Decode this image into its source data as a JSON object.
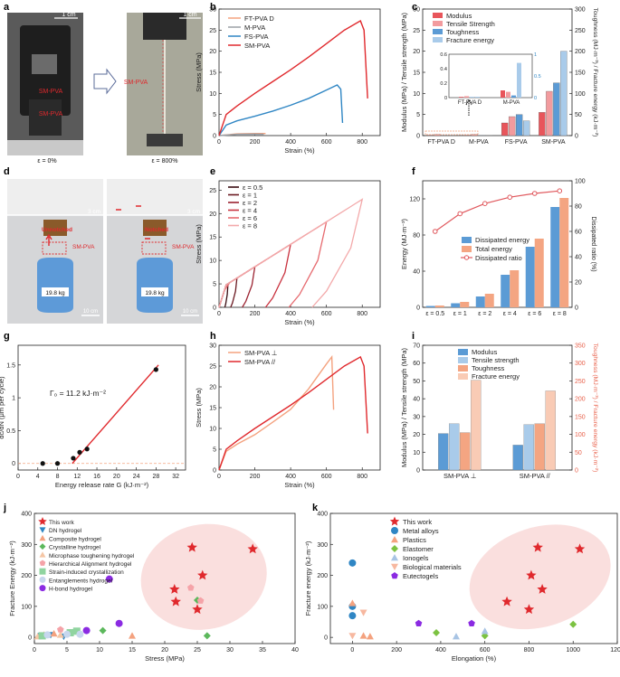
{
  "panel_labels": [
    "a",
    "b",
    "c",
    "d",
    "e",
    "f",
    "g",
    "h",
    "i",
    "j",
    "k"
  ],
  "photos": {
    "a": {
      "scale1": "1 cm",
      "scale2": "1 cm",
      "label_top": "SM-PVA",
      "label_bottom": "SM-PVA",
      "label_right": "SM-PVA",
      "strain1": "ε = 0%",
      "strain2": "ε = 800%"
    },
    "d": {
      "scale1": "3 cm",
      "scale2": "3 cm",
      "unnotched": "Unnotched",
      "notched": "Notched",
      "sample1": "SM-PVA",
      "sample2": "SM-PVA",
      "weight1": "19.8 kg",
      "weight2": "19.8 kg",
      "bottom1": "10 cm",
      "bottom2": "10 cm"
    }
  },
  "chart_data": [
    {
      "id": "b",
      "type": "line",
      "xlabel": "Strain (%)",
      "ylabel": "Stress (MPa)",
      "xlim": [
        0,
        900
      ],
      "ylim": [
        0,
        30
      ],
      "xticks": [
        0,
        200,
        400,
        600,
        800
      ],
      "yticks": [
        0,
        5,
        10,
        15,
        20,
        25,
        30
      ],
      "series": [
        {
          "name": "FT-PVA D",
          "color": "#f4a27f",
          "points": [
            [
              0,
              0
            ],
            [
              100,
              0.4
            ],
            [
              200,
              0.5
            ],
            [
              260,
              0.5
            ]
          ]
        },
        {
          "name": "M-PVA",
          "color": "#9aa0a6",
          "points": [
            [
              0,
              0
            ],
            [
              100,
              0.3
            ],
            [
              200,
              0.35
            ],
            [
              250,
              0.3
            ]
          ]
        },
        {
          "name": "FS-PVA",
          "color": "#2f86c4",
          "points": [
            [
              0,
              0
            ],
            [
              40,
              2.5
            ],
            [
              100,
              3.5
            ],
            [
              200,
              4.6
            ],
            [
              300,
              5.8
            ],
            [
              400,
              7.2
            ],
            [
              500,
              8.8
            ],
            [
              600,
              10.8
            ],
            [
              660,
              12.0
            ],
            [
              680,
              11.0
            ],
            [
              690,
              3.0
            ]
          ]
        },
        {
          "name": "SM-PVA",
          "color": "#e0292d",
          "points": [
            [
              0,
              0
            ],
            [
              40,
              5
            ],
            [
              100,
              7
            ],
            [
              200,
              10
            ],
            [
              300,
              12.8
            ],
            [
              400,
              15.6
            ],
            [
              500,
              18.6
            ],
            [
              600,
              21.8
            ],
            [
              700,
              25.0
            ],
            [
              790,
              27.2
            ],
            [
              810,
              25.0
            ],
            [
              830,
              8.8
            ]
          ]
        }
      ]
    },
    {
      "id": "c",
      "type": "bar",
      "ylabel_left": "Modulus (MPa) / Tensile strength (MPa)",
      "ylabel_right": "Toughness (MJ·m⁻³) / Fracture energy (kJ·m⁻²)",
      "ylim_left": [
        0,
        30
      ],
      "ylim_right": [
        0,
        300
      ],
      "yticks_left": [
        0,
        5,
        10,
        15,
        20,
        25,
        30
      ],
      "yticks_right": [
        0,
        50,
        100,
        150,
        200,
        250,
        300
      ],
      "categories": [
        "FT-PVA D",
        "M-PVA",
        "FS-PVA",
        "SM-PVA"
      ],
      "series": [
        {
          "name": "Modulus",
          "axis": "left",
          "color": "#e8555b",
          "values": [
            0.1,
            0.1,
            3.0,
            5.5
          ]
        },
        {
          "name": "Tensile Strength",
          "axis": "left",
          "color": "#f29b9e",
          "values": [
            0.3,
            0.3,
            4.5,
            10.5
          ]
        },
        {
          "name": "Toughness",
          "axis": "right",
          "color": "#5b9bd5",
          "values": [
            0.2,
            0.3,
            50,
            125
          ]
        },
        {
          "name": "Fracture energy",
          "axis": "right",
          "color": "#a9cbea",
          "values": [
            0.8,
            0.5,
            35,
            200
          ]
        }
      ],
      "inset": {
        "ylim_left": [
          0,
          0.6
        ],
        "ylim_right": [
          0,
          1.0
        ],
        "yticks_left": [
          0,
          0.2,
          0.4,
          0.6
        ],
        "yticks_right": [
          0,
          0.5,
          1.0
        ],
        "categories": [
          "FT-PVA D",
          "M-PVA"
        ],
        "values": {
          "Modulus": [
            0.01,
            0.1
          ],
          "Tensile Strength": [
            0.02,
            0.08
          ],
          "Toughness": [
            0.01,
            0.05
          ],
          "Fracture energy": [
            0.02,
            0.8
          ]
        }
      }
    },
    {
      "id": "e",
      "type": "line",
      "xlabel": "Strain (%)",
      "ylabel": "Stress (MPa)",
      "xlim": [
        0,
        900
      ],
      "ylim": [
        0,
        27
      ],
      "xticks": [
        0,
        200,
        400,
        600,
        800
      ],
      "yticks": [
        0,
        5,
        10,
        15,
        20,
        25
      ],
      "series": [
        {
          "name": "ε = 0.5",
          "color": "#3a0d12",
          "max": 50
        },
        {
          "name": "ε = 1",
          "color": "#6b1a22",
          "max": 100
        },
        {
          "name": "ε = 2",
          "color": "#9b2230",
          "max": 200
        },
        {
          "name": "ε = 4",
          "color": "#c9323f",
          "max": 400
        },
        {
          "name": "ε = 6",
          "color": "#e66a6f",
          "max": 600
        },
        {
          "name": "ε = 8",
          "color": "#f3a9aa",
          "max": 800
        }
      ]
    },
    {
      "id": "f",
      "type": "bar",
      "ylabel_left": "Energy (MJ·m⁻³)",
      "ylabel_right": "Dissipated ratio (%)",
      "ylim_left": [
        0,
        140
      ],
      "ylim_right": [
        0,
        100
      ],
      "yticks_left": [
        0,
        40,
        80,
        120
      ],
      "yticks_right": [
        0,
        20,
        40,
        60,
        80,
        100
      ],
      "categories": [
        "ε = 0.5",
        "ε = 1",
        "ε = 2",
        "ε = 4",
        "ε = 6",
        "ε = 8"
      ],
      "series": [
        {
          "name": "Dissipated energy",
          "color": "#5b9bd5",
          "values": [
            1.5,
            4.5,
            12,
            36,
            67,
            111
          ]
        },
        {
          "name": "Total energy",
          "color": "#f4a582",
          "values": [
            2,
            6,
            15,
            41,
            76,
            121
          ]
        },
        {
          "name": "Dissipated ratio",
          "color": "#e0585d",
          "values": [
            60,
            74,
            82,
            87,
            90,
            92
          ]
        }
      ]
    },
    {
      "id": "g",
      "type": "scatter",
      "xlabel": "Energy release rate G (kJ·m⁻²)",
      "ylabel": "dc/dN (μm per cycle)",
      "xlim": [
        0,
        34
      ],
      "ylim": [
        -0.1,
        1.8
      ],
      "xticks": [
        0,
        4,
        8,
        12,
        16,
        20,
        24,
        28,
        32
      ],
      "yticks": [
        0.0,
        0.5,
        1.0,
        1.5
      ],
      "annotation": "Γ₀ = 11.2 kJ·m⁻²",
      "points": [
        [
          5,
          0
        ],
        [
          8,
          0
        ],
        [
          11.2,
          0.08
        ],
        [
          12.5,
          0.17
        ],
        [
          14,
          0.22
        ],
        [
          28,
          1.43
        ]
      ],
      "fit": [
        [
          11,
          0
        ],
        [
          28.5,
          1.5
        ]
      ]
    },
    {
      "id": "h",
      "type": "line",
      "xlabel": "Strain (%)",
      "ylabel": "Stress (MPa)",
      "xlim": [
        0,
        900
      ],
      "ylim": [
        0,
        30
      ],
      "xticks": [
        0,
        200,
        400,
        600,
        800
      ],
      "yticks": [
        0,
        5,
        10,
        15,
        20,
        25,
        30
      ],
      "series": [
        {
          "name": "SM-PVA ⊥",
          "color": "#f4a27f",
          "points": [
            [
              0,
              0
            ],
            [
              40,
              4.5
            ],
            [
              100,
              6.2
            ],
            [
              200,
              8.5
            ],
            [
              300,
              11.5
            ],
            [
              400,
              14.6
            ],
            [
              500,
              19.5
            ],
            [
              600,
              25.5
            ],
            [
              630,
              27.2
            ],
            [
              640,
              14.5
            ]
          ]
        },
        {
          "name": "SM-PVA //",
          "color": "#e0292d",
          "points": [
            [
              0,
              0
            ],
            [
              40,
              5
            ],
            [
              100,
              7
            ],
            [
              200,
              10
            ],
            [
              300,
              12.8
            ],
            [
              400,
              15.6
            ],
            [
              500,
              18.6
            ],
            [
              600,
              21.8
            ],
            [
              700,
              25.0
            ],
            [
              790,
              27.2
            ],
            [
              810,
              25.0
            ],
            [
              830,
              8.8
            ]
          ]
        }
      ]
    },
    {
      "id": "i",
      "type": "bar",
      "ylabel_left": "Modulus (MPa) / Tensile strength (MPa)",
      "ylabel_right": "Toughness (MJ·m⁻³) / Fracture energy (kJ·m⁻²)",
      "ylim_left": [
        0,
        70
      ],
      "ylim_right": [
        0,
        350
      ],
      "yticks_left": [
        0,
        10,
        20,
        30,
        40,
        50,
        60,
        70
      ],
      "yticks_right": [
        0,
        50,
        100,
        150,
        200,
        250,
        300,
        350
      ],
      "categories": [
        "SM-PVA ⊥",
        "SM-PVA //"
      ],
      "series": [
        {
          "name": "Modulus",
          "axis": "left",
          "color": "#5b9bd5",
          "values": [
            20.5,
            14
          ]
        },
        {
          "name": "Tensile strength",
          "axis": "left",
          "color": "#a9cbea",
          "values": [
            26,
            25.5
          ]
        },
        {
          "name": "Toughness",
          "axis": "right",
          "color": "#f4a582",
          "values": [
            105,
            130
          ]
        },
        {
          "name": "Fracture energy",
          "axis": "right",
          "color": "#f9cbb5",
          "values": [
            252,
            222
          ]
        }
      ]
    },
    {
      "id": "j",
      "type": "scatter",
      "xlabel": "Stress (MPa)",
      "ylabel": "Fracture Energy (kJ·m⁻²)",
      "xlim": [
        0,
        40
      ],
      "ylim": [
        -20,
        400
      ],
      "xticks": [
        0,
        5,
        10,
        15,
        20,
        25,
        30,
        35,
        40
      ],
      "yticks": [
        0,
        100,
        200,
        300,
        400
      ],
      "series": [
        {
          "name": "This work",
          "color": "#e0292d",
          "marker": "star",
          "points": [
            [
              21.5,
              155
            ],
            [
              21.7,
              115
            ],
            [
              24.2,
              290
            ],
            [
              25,
              90
            ],
            [
              25.8,
              200
            ],
            [
              33.5,
              285
            ]
          ]
        },
        {
          "name": "DN hydrogel",
          "color": "#2f86c4",
          "marker": "triangle-down",
          "points": [
            [
              1,
              5
            ],
            [
              2.5,
              8
            ],
            [
              4.5,
              3
            ]
          ]
        },
        {
          "name": "Composite hydrogel",
          "color": "#f4a27f",
          "marker": "triangle",
          "points": [
            [
              1.5,
              8
            ],
            [
              3,
              12
            ],
            [
              15,
              5
            ]
          ]
        },
        {
          "name": "Crystalline hydrogel",
          "color": "#5cb85c",
          "marker": "diamond",
          "points": [
            [
              10.5,
              22
            ],
            [
              25,
              120
            ],
            [
              26.5,
              5
            ]
          ]
        },
        {
          "name": "Microphase toughening hydrogel",
          "color": "#f5c6a5",
          "marker": "triangle",
          "points": [
            [
              0.5,
              3
            ],
            [
              4,
              8
            ]
          ]
        },
        {
          "name": "Hierarchical Alignment hydrogel",
          "color": "#f5a3a8",
          "marker": "pentagon",
          "points": [
            [
              4,
              25
            ],
            [
              24,
              160
            ],
            [
              25.5,
              118
            ]
          ]
        },
        {
          "name": "Strain-induced crystallization",
          "color": "#90d4a0",
          "marker": "square",
          "points": [
            [
              1.2,
              5
            ],
            [
              5.5,
              15
            ],
            [
              6.5,
              20
            ]
          ]
        },
        {
          "name": "Entanglements hydrogel",
          "color": "#c7d7ee",
          "marker": "circle",
          "points": [
            [
              2,
              8
            ],
            [
              5,
              10
            ],
            [
              7,
              10
            ]
          ]
        },
        {
          "name": "H-bond hydrogel",
          "color": "#8b2be2",
          "marker": "circle",
          "points": [
            [
              8,
              22
            ],
            [
              11.5,
              188
            ],
            [
              13,
              45
            ]
          ]
        }
      ]
    },
    {
      "id": "k",
      "type": "scatter",
      "xlabel": "Elongation (%)",
      "ylabel": "Fracture energy (kJ·m⁻²)",
      "xlim": [
        -100,
        1200
      ],
      "ylim": [
        -20,
        400
      ],
      "xticks": [
        0,
        200,
        400,
        600,
        800,
        1000,
        1200
      ],
      "yticks": [
        0,
        100,
        200,
        300,
        400
      ],
      "series": [
        {
          "name": "This work",
          "color": "#e0292d",
          "marker": "star",
          "points": [
            [
              700,
              115
            ],
            [
              800,
              90
            ],
            [
              810,
              200
            ],
            [
              840,
              290
            ],
            [
              860,
              155
            ],
            [
              1030,
              285
            ]
          ]
        },
        {
          "name": "Metal alloys",
          "color": "#2f86c4",
          "marker": "circle",
          "points": [
            [
              0,
              240
            ],
            [
              0,
              100
            ],
            [
              0,
              70
            ]
          ]
        },
        {
          "name": "Plastics",
          "color": "#f4a27f",
          "marker": "triangle",
          "points": [
            [
              0,
              110
            ],
            [
              50,
              5
            ],
            [
              80,
              3
            ]
          ]
        },
        {
          "name": "Elastomer",
          "color": "#7cc242",
          "marker": "diamond",
          "points": [
            [
              600,
              5
            ],
            [
              1000,
              42
            ],
            [
              380,
              15
            ]
          ]
        },
        {
          "name": "Ionogels",
          "color": "#a8c4e4",
          "marker": "triangle",
          "points": [
            [
              470,
              3
            ],
            [
              600,
              20
            ]
          ]
        },
        {
          "name": "Biological materials",
          "color": "#f7b8a0",
          "marker": "triangle-down",
          "points": [
            [
              0,
              5
            ],
            [
              50,
              80
            ]
          ]
        },
        {
          "name": "Eutectogels",
          "color": "#8b2be2",
          "marker": "pentagon",
          "points": [
            [
              300,
              45
            ],
            [
              540,
              45
            ]
          ]
        }
      ]
    }
  ]
}
